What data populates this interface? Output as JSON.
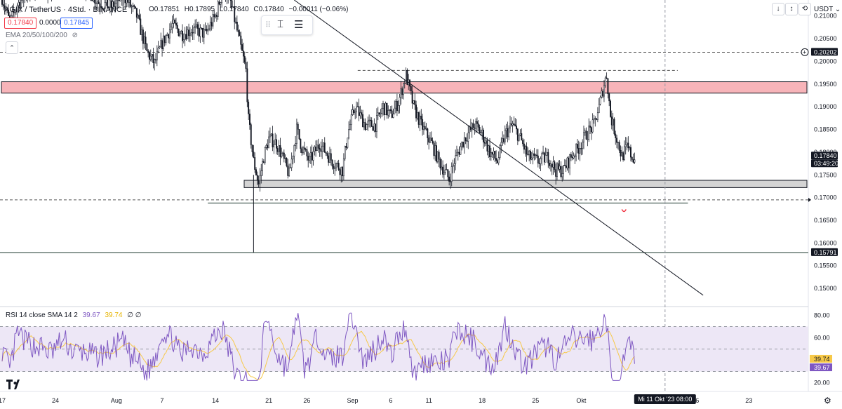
{
  "header": {
    "symbol": "AGIX / TetherUS · 4Std. · BINANCE",
    "ohlc": {
      "o": "O0.17851",
      "h": "H0.17895",
      "l": "L0.17840",
      "c": "C0.17840",
      "chg": "−0.00011 (−0.06%)"
    },
    "bid": "0.17840",
    "spread": "0.00005",
    "ask": "0.17845",
    "ema_label": "EMA 20/50/100/200",
    "currency": "USDT"
  },
  "rsi": {
    "label": "RSI 14 close SMA 14 2",
    "value_rsi": "39.67",
    "value_sma": "39.74",
    "extra": "∅ ∅"
  },
  "colors": {
    "resistance_fill": "#f7b4b9",
    "support_fill": "#d4d4d4",
    "rsi_line": "#7e57c2",
    "rsi_sma": "#f7c948",
    "rsi_band": "#ede7f6",
    "candle": "#131722"
  },
  "icons": [
    "settings-icon",
    "hide-eye-icon",
    "collapse-icon",
    "arrow-down-icon",
    "fullscreen-icon",
    "restore-icon",
    "close-icon",
    "text-cursor-icon",
    "lines-icon",
    "tv-logo-icon",
    "plus-icon"
  ],
  "chart_data": {
    "type": "candlestick",
    "price_axis": {
      "ticks": [
        "0.21000",
        "0.20500",
        "0.20000",
        "0.19500",
        "0.19000",
        "0.18500",
        "0.18000",
        "0.17500",
        "0.17000",
        "0.16500",
        "0.16000",
        "0.15500",
        "0.15000"
      ],
      "labels": [
        {
          "text": "0.20202",
          "kind": "dark"
        },
        {
          "text": "0.17840",
          "kind": "dark"
        },
        {
          "text": "03:49:20",
          "kind": "dark"
        },
        {
          "text": "0.15791",
          "kind": "dark"
        }
      ],
      "ylim": [
        0.146,
        0.2135
      ]
    },
    "time_axis": {
      "ticks": [
        {
          "label": "17",
          "i": 0
        },
        {
          "label": "24",
          "i": 42
        },
        {
          "label": "Aug",
          "i": 90
        },
        {
          "label": "7",
          "i": 126
        },
        {
          "label": "14",
          "i": 168
        },
        {
          "label": "21",
          "i": 210
        },
        {
          "label": "26",
          "i": 240
        },
        {
          "label": "Sep",
          "i": 276
        },
        {
          "label": "6",
          "i": 306
        },
        {
          "label": "11",
          "i": 336
        },
        {
          "label": "18",
          "i": 378
        },
        {
          "label": "25",
          "i": 420
        },
        {
          "label": "Okt",
          "i": 456
        },
        {
          "label": "16",
          "i": 546
        },
        {
          "label": "23",
          "i": 588
        }
      ],
      "cursor_label": "Mi 11 Okt '23  08:00",
      "cursor_i": 522
    },
    "bars": 480,
    "anchors": [
      [
        0,
        0.214
      ],
      [
        6,
        0.2085
      ],
      [
        12,
        0.2125
      ],
      [
        20,
        0.215
      ],
      [
        30,
        0.216
      ],
      [
        40,
        0.215
      ],
      [
        50,
        0.218
      ],
      [
        66,
        0.216
      ],
      [
        76,
        0.213
      ],
      [
        86,
        0.212
      ],
      [
        96,
        0.2145
      ],
      [
        106,
        0.21
      ],
      [
        114,
        0.202
      ],
      [
        120,
        0.1995
      ],
      [
        126,
        0.204
      ],
      [
        134,
        0.208
      ],
      [
        142,
        0.206
      ],
      [
        150,
        0.207
      ],
      [
        160,
        0.206
      ],
      [
        164,
        0.208
      ],
      [
        168,
        0.21
      ],
      [
        172,
        0.214
      ],
      [
        176,
        0.215
      ],
      [
        180,
        0.213
      ],
      [
        184,
        0.208
      ],
      [
        188,
        0.203
      ],
      [
        192,
        0.198
      ],
      [
        194,
        0.187
      ],
      [
        198,
        0.178
      ],
      [
        202,
        0.173
      ],
      [
        206,
        0.179
      ],
      [
        210,
        0.183
      ],
      [
        216,
        0.182
      ],
      [
        222,
        0.178
      ],
      [
        226,
        0.175
      ],
      [
        232,
        0.185
      ],
      [
        236,
        0.181
      ],
      [
        242,
        0.178
      ],
      [
        250,
        0.182
      ],
      [
        260,
        0.178
      ],
      [
        268,
        0.176
      ],
      [
        272,
        0.184
      ],
      [
        278,
        0.19
      ],
      [
        286,
        0.186
      ],
      [
        294,
        0.186
      ],
      [
        300,
        0.19
      ],
      [
        306,
        0.188
      ],
      [
        312,
        0.191
      ],
      [
        318,
        0.197
      ],
      [
        324,
        0.19
      ],
      [
        330,
        0.186
      ],
      [
        338,
        0.182
      ],
      [
        344,
        0.178
      ],
      [
        348,
        0.176
      ],
      [
        352,
        0.174
      ],
      [
        356,
        0.178
      ],
      [
        364,
        0.183
      ],
      [
        372,
        0.186
      ],
      [
        378,
        0.184
      ],
      [
        384,
        0.18
      ],
      [
        390,
        0.178
      ],
      [
        396,
        0.184
      ],
      [
        402,
        0.186
      ],
      [
        408,
        0.183
      ],
      [
        414,
        0.179
      ],
      [
        422,
        0.178
      ],
      [
        430,
        0.179
      ],
      [
        436,
        0.176
      ],
      [
        442,
        0.176
      ],
      [
        448,
        0.179
      ],
      [
        454,
        0.181
      ],
      [
        460,
        0.184
      ],
      [
        466,
        0.186
      ],
      [
        470,
        0.19
      ],
      [
        474,
        0.195
      ],
      [
        476,
        0.197
      ],
      [
        479,
        0.188
      ]
    ],
    "tail_anchors": [
      [
        480,
        0.188
      ],
      [
        484,
        0.183
      ],
      [
        488,
        0.179
      ],
      [
        492,
        0.181
      ],
      [
        496,
        0.179
      ],
      [
        498,
        0.1784
      ]
    ],
    "zones": [
      {
        "name": "resistance",
        "from": 0.193,
        "to": 0.1955
      },
      {
        "name": "support",
        "from": 0.1722,
        "to": 0.1738
      }
    ],
    "hlines": [
      {
        "price": 0.202,
        "style": "dashed"
      },
      {
        "price": 0.198,
        "style": "dashed",
        "x_from_i": 280,
        "x_to_i": 532
      },
      {
        "price": 0.1695,
        "style": "dashed"
      },
      {
        "price": 0.1688,
        "style": "solid",
        "x_from_i": 162,
        "x_to_i": 540
      },
      {
        "price": 0.1579,
        "style": "solid"
      }
    ],
    "trendline": {
      "from": [
        230,
        0.2135
      ],
      "to": [
        552,
        0.1485
      ]
    },
    "rsi_axis": {
      "ticks": [
        "80.00",
        "60.00",
        "40.00",
        "20.00"
      ],
      "ylim": [
        16,
        84
      ],
      "band": [
        30,
        70
      ]
    },
    "rsi_values_note": "RSI series oscillating 25–80 around 50"
  }
}
